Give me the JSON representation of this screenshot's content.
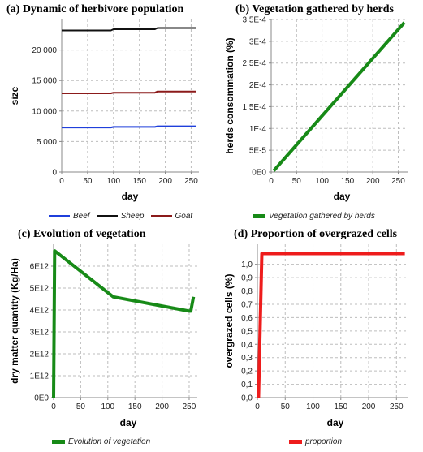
{
  "chart_data": [
    {
      "type": "line",
      "title": "(a) Dynamic of herbivore population",
      "xlabel": "day",
      "ylabel": "size",
      "xlim": [
        0,
        265
      ],
      "ylim": [
        0,
        25000
      ],
      "xticks": [
        0,
        50,
        100,
        150,
        200,
        250
      ],
      "xtick_labels": [
        "0",
        "50",
        "100",
        "150",
        "200",
        "250"
      ],
      "yticks": [
        0,
        5000,
        10000,
        15000,
        20000
      ],
      "ytick_labels": [
        "0",
        "5 000",
        "10 000",
        "15 000",
        "20 000"
      ],
      "grid": true,
      "legend_position": "bottom",
      "series": [
        {
          "name": "Beef",
          "color": "#1f3fdb",
          "x": [
            0,
            95,
            100,
            180,
            185,
            260
          ],
          "y": [
            7300,
            7300,
            7400,
            7400,
            7500,
            7500
          ]
        },
        {
          "name": "Sheep",
          "color": "#111111",
          "x": [
            0,
            95,
            100,
            180,
            185,
            260
          ],
          "y": [
            23200,
            23200,
            23400,
            23400,
            23600,
            23600
          ]
        },
        {
          "name": "Goat",
          "color": "#8b1a1a",
          "x": [
            0,
            95,
            100,
            180,
            185,
            260
          ],
          "y": [
            12900,
            12900,
            13000,
            13000,
            13200,
            13200
          ]
        }
      ]
    },
    {
      "type": "line",
      "title": "(b) Vegetation gathered by herds",
      "xlabel": "day",
      "ylabel": "herds consommation (%)",
      "xlim": [
        0,
        270
      ],
      "ylim": [
        0,
        0.00035
      ],
      "xticks": [
        0,
        50,
        100,
        150,
        200,
        250
      ],
      "xtick_labels": [
        "0",
        "50",
        "100",
        "150",
        "200",
        "250"
      ],
      "yticks": [
        0,
        5e-05,
        0.0001,
        0.00015,
        0.0002,
        0.00025,
        0.0003,
        0.00035
      ],
      "ytick_labels": [
        "0E0",
        "5E-5",
        "1E-4",
        "1,5E-4",
        "2E-4",
        "2,5E-4",
        "3E-4",
        "3,5E-4"
      ],
      "grid": true,
      "legend_position": "bottom",
      "series": [
        {
          "name": "Vegetation gathered by herds",
          "color": "#178a17",
          "x": [
            5,
            262
          ],
          "y": [
            3e-06,
            0.000343
          ]
        }
      ]
    },
    {
      "type": "line",
      "title": "(c) Evolution of vegetation",
      "xlabel": "day",
      "ylabel": "dry matter quantity (Kg/Ha)",
      "xlim": [
        0,
        265
      ],
      "ylim": [
        0,
        7000000000000
      ],
      "xticks": [
        0,
        50,
        100,
        150,
        200,
        250
      ],
      "xtick_labels": [
        "0",
        "50",
        "100",
        "150",
        "200",
        "250"
      ],
      "yticks": [
        0,
        1000000000000,
        2000000000000,
        3000000000000,
        4000000000000,
        5000000000000,
        6000000000000
      ],
      "ytick_labels": [
        "0E0",
        "1E12",
        "2E12",
        "3E12",
        "4E12",
        "5E12",
        "6E12"
      ],
      "grid": true,
      "legend_position": "bottom",
      "series": [
        {
          "name": "Evolution of vegetation",
          "color": "#178a17",
          "x": [
            0,
            2,
            110,
            250,
            253,
            258
          ],
          "y": [
            0,
            6700000000000,
            4600000000000,
            3950000000000,
            3950000000000,
            4600000000000
          ]
        }
      ]
    },
    {
      "type": "line",
      "title": "(d) Proportion of overgrazed cells",
      "xlabel": "day",
      "ylabel": "overgrazed cells (%)",
      "xlim": [
        0,
        270
      ],
      "ylim": [
        0,
        1.15
      ],
      "xticks": [
        0,
        50,
        100,
        150,
        200,
        250
      ],
      "xtick_labels": [
        "0",
        "50",
        "100",
        "150",
        "200",
        "250"
      ],
      "yticks": [
        0,
        0.1,
        0.2,
        0.3,
        0.4,
        0.5,
        0.6,
        0.7,
        0.8,
        0.9,
        1.0
      ],
      "ytick_labels": [
        "0,0",
        "0,1",
        "0,2",
        "0,3",
        "0,4",
        "0,5",
        "0,6",
        "0,7",
        "0,8",
        "0,9",
        "1,0"
      ],
      "grid": true,
      "legend_position": "bottom",
      "series": [
        {
          "name": "proportion",
          "color": "#ee1c1c",
          "x": [
            2,
            8,
            265
          ],
          "y": [
            0,
            1.08,
            1.08
          ]
        }
      ]
    }
  ]
}
